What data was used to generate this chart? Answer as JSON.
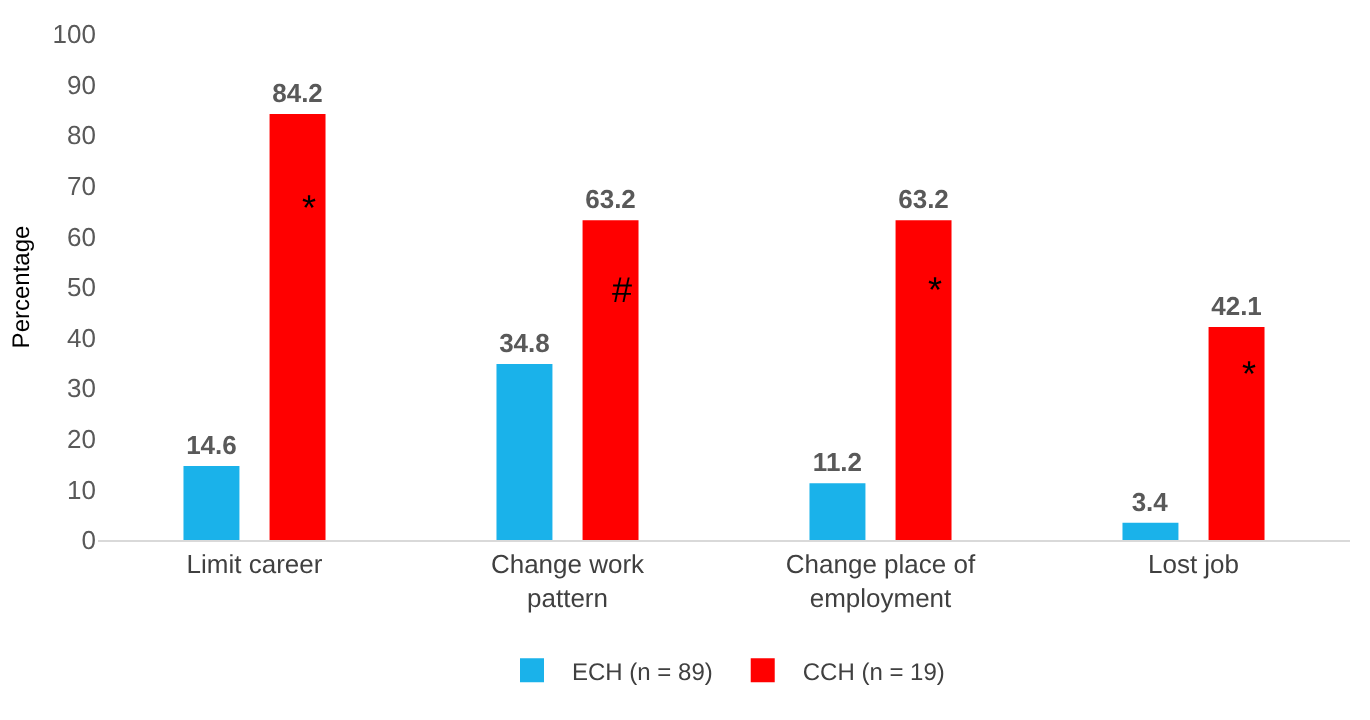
{
  "chart_data": {
    "type": "bar",
    "ylabel": "Percentage",
    "categories": [
      "Limit career",
      "Change work pattern",
      "Change place of employment",
      "Lost job"
    ],
    "series": [
      {
        "name": "ECH (n = 89)",
        "color": "#1ab2ea",
        "values": [
          14.6,
          34.8,
          11.2,
          3.4
        ]
      },
      {
        "name": "CCH (n = 19)",
        "color": "#ff0000",
        "values": [
          84.2,
          63.2,
          63.2,
          42.1
        ]
      }
    ],
    "ylim": [
      0,
      100
    ],
    "yticks": [
      0,
      10,
      20,
      30,
      40,
      50,
      60,
      70,
      80,
      90,
      100
    ],
    "legend": "bottom",
    "data_labels": true,
    "annotations": [
      "*",
      "#",
      "*",
      "*"
    ]
  }
}
